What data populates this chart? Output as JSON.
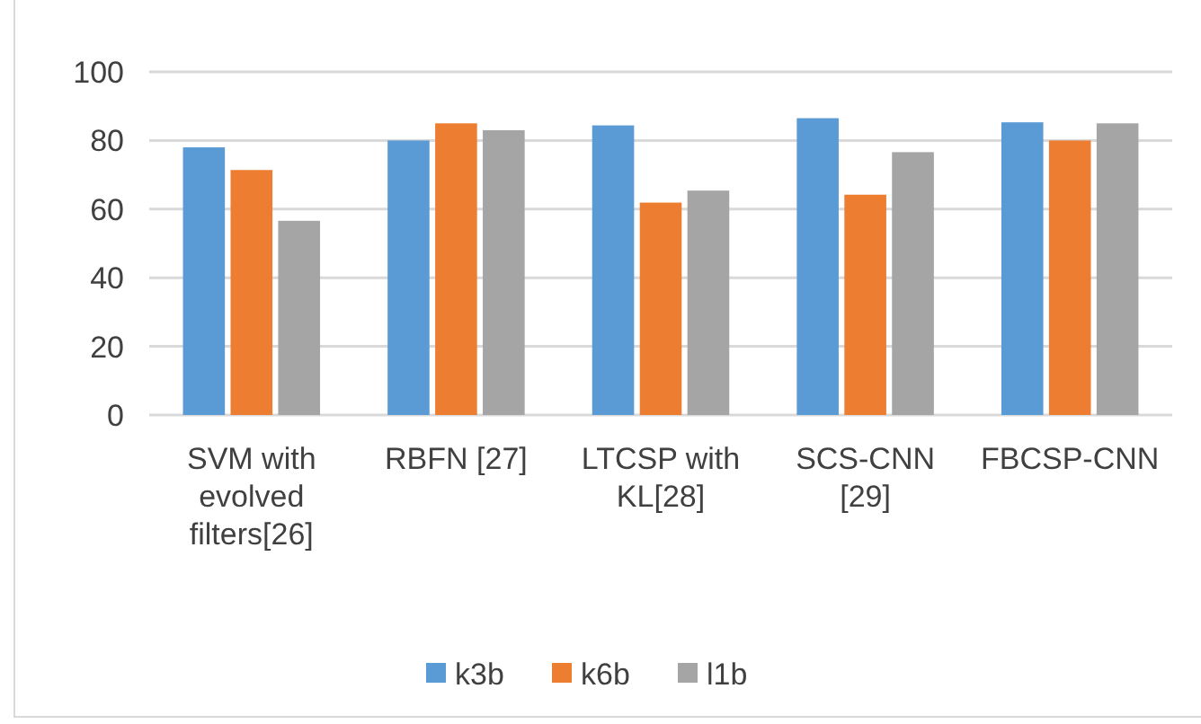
{
  "chart_data": {
    "type": "bar",
    "categories": [
      "SVM with evolved filters[26]",
      "RBFN [27]",
      "LTCSP with KL[28]",
      "SCS-CNN [29]",
      "FBCSP-CNN"
    ],
    "series": [
      {
        "name": "k3b",
        "color": "#5b9bd5",
        "values": [
          78,
          80,
          84.4,
          86.5,
          85.3
        ]
      },
      {
        "name": "k6b",
        "color": "#ed7d31",
        "values": [
          71.4,
          85,
          61.9,
          64.2,
          80
        ]
      },
      {
        "name": "l1b",
        "color": "#a5a5a5",
        "values": [
          56.6,
          83,
          65.4,
          76.6,
          85
        ]
      }
    ],
    "ylim": [
      0,
      100
    ],
    "yticks": [
      0,
      20,
      40,
      60,
      80,
      100
    ],
    "grid": "y",
    "legend": "bottom"
  }
}
